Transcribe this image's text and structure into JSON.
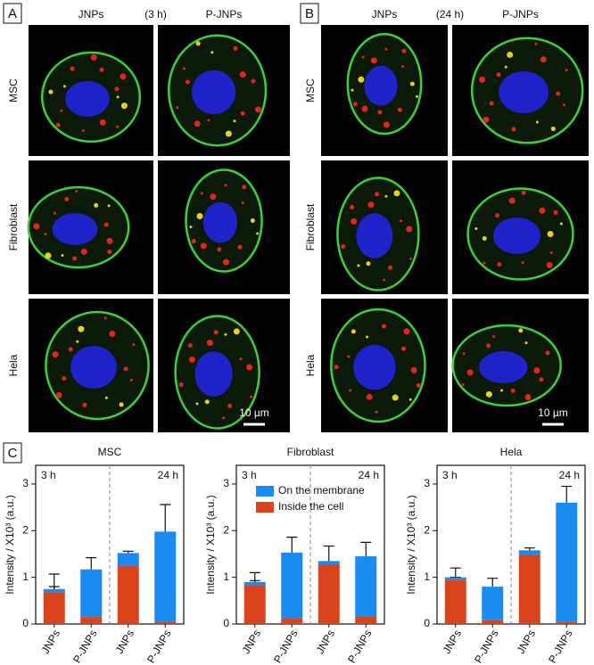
{
  "panels": [
    {
      "label": "A",
      "columns": [
        "JNPs",
        "P-JNPs"
      ],
      "time": "(3 h)",
      "rows": [
        "MSC",
        "Fibroblast",
        "Hela"
      ],
      "scale_bar": "10 µm"
    },
    {
      "label": "B",
      "columns": [
        "JNPs",
        "P-JNPs"
      ],
      "time": "(24 h)",
      "rows": [
        "MSC",
        "Fibroblast",
        "Hela"
      ],
      "scale_bar": "10 µm"
    }
  ],
  "panel_c_label": "C",
  "chart_data": [
    {
      "type": "bar",
      "stacked": true,
      "title": "MSC",
      "y_label": "Intensity / X10³ (a.u.)",
      "categories": [
        "JNPs",
        "P-JNPs",
        "JNPs",
        "P-JNPs"
      ],
      "annotations": [
        "3 h",
        "24 h"
      ],
      "ylim": [
        0,
        3.4
      ],
      "yticks": [
        0,
        1,
        2,
        3
      ],
      "series": [
        {
          "color": "#d9441c",
          "values": [
            0.68,
            0.15,
            1.25,
            0.05
          ],
          "errors": [
            0.12,
            0.04,
            0.03,
            0.02
          ]
        },
        {
          "color": "#1a8cf0",
          "values": [
            0.07,
            1.02,
            0.27,
            1.93
          ],
          "errors": [
            0.32,
            0.25,
            0.04,
            0.58
          ]
        }
      ]
    },
    {
      "type": "bar",
      "stacked": true,
      "title": "Fibroblast",
      "y_label": "Intensity / X10³ (a.u.)",
      "categories": [
        "JNPs",
        "P-JNPs",
        "JNPs",
        "P-JNPs"
      ],
      "annotations": [
        "3 h",
        "24 h"
      ],
      "ylim": [
        0,
        3.4
      ],
      "yticks": [
        0,
        1,
        2,
        3
      ],
      "legend": "upper right",
      "series": [
        {
          "name": "Inside the cell",
          "color": "#d9441c",
          "values": [
            0.83,
            0.13,
            1.27,
            0.17
          ],
          "errors": [
            0.1,
            0.03,
            0.05,
            0.04
          ]
        },
        {
          "name": "On the membrane",
          "color": "#1a8cf0",
          "values": [
            0.07,
            1.4,
            0.08,
            1.28
          ],
          "errors": [
            0.2,
            0.33,
            0.32,
            0.3
          ]
        }
      ]
    },
    {
      "type": "bar",
      "stacked": true,
      "title": "Hela",
      "y_label": "Intensity / X10³ (a.u.)",
      "categories": [
        "JNPs",
        "P-JNPs",
        "JNPs",
        "P-JNPs"
      ],
      "annotations": [
        "3 h",
        "24 h"
      ],
      "ylim": [
        0,
        3.4
      ],
      "yticks": [
        0,
        1,
        2,
        3
      ],
      "series": [
        {
          "color": "#d9441c",
          "values": [
            0.95,
            0.08,
            1.48,
            0.05
          ],
          "errors": [
            0.05,
            0.03,
            0.08,
            0.02
          ]
        },
        {
          "color": "#1a8cf0",
          "values": [
            0.05,
            0.72,
            0.1,
            2.55
          ],
          "errors": [
            0.2,
            0.18,
            0.05,
            0.35
          ]
        }
      ]
    }
  ]
}
